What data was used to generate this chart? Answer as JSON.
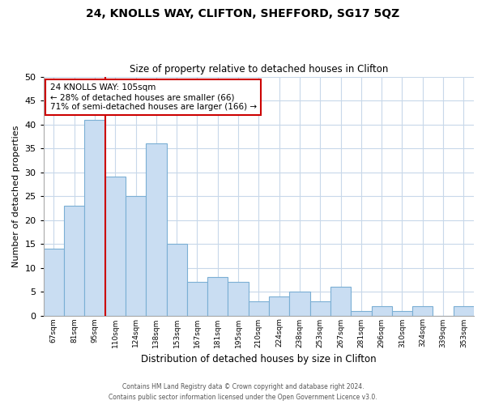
{
  "title": "24, KNOLLS WAY, CLIFTON, SHEFFORD, SG17 5QZ",
  "subtitle": "Size of property relative to detached houses in Clifton",
  "xlabel": "Distribution of detached houses by size in Clifton",
  "ylabel": "Number of detached properties",
  "bar_labels": [
    "67sqm",
    "81sqm",
    "95sqm",
    "110sqm",
    "124sqm",
    "138sqm",
    "153sqm",
    "167sqm",
    "181sqm",
    "195sqm",
    "210sqm",
    "224sqm",
    "238sqm",
    "253sqm",
    "267sqm",
    "281sqm",
    "296sqm",
    "310sqm",
    "324sqm",
    "339sqm",
    "353sqm"
  ],
  "bar_values": [
    14,
    23,
    41,
    29,
    25,
    36,
    15,
    7,
    8,
    7,
    3,
    4,
    5,
    3,
    6,
    1,
    2,
    1,
    2,
    0,
    2
  ],
  "bar_color": "#c9ddf2",
  "bar_edge_color": "#7bafd4",
  "vline_color": "#cc0000",
  "annotation_text": "24 KNOLLS WAY: 105sqm\n← 28% of detached houses are smaller (66)\n71% of semi-detached houses are larger (166) →",
  "annotation_box_color": "#ffffff",
  "annotation_box_edge": "#cc0000",
  "footer_line1": "Contains HM Land Registry data © Crown copyright and database right 2024.",
  "footer_line2": "Contains public sector information licensed under the Open Government Licence v3.0.",
  "bg_color": "#ffffff",
  "grid_color": "#c8d8ea",
  "ylim": [
    0,
    50
  ],
  "yticks": [
    0,
    5,
    10,
    15,
    20,
    25,
    30,
    35,
    40,
    45,
    50
  ]
}
